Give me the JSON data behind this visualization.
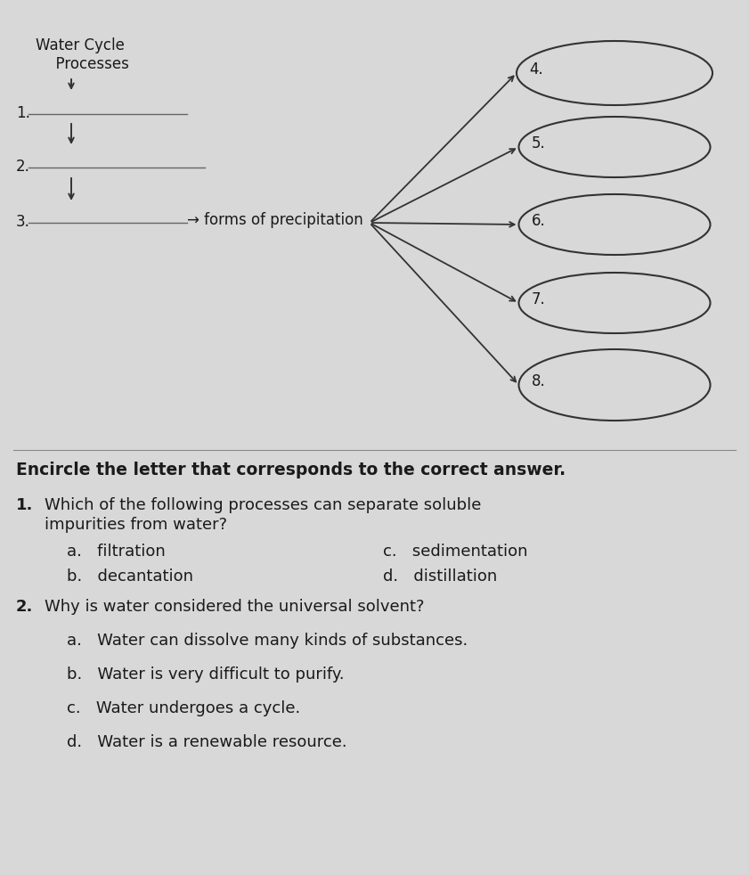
{
  "background_color": "#d8d8d8",
  "title_water_cycle": "Water Cycle",
  "title_processes": "  Processes",
  "label_1": "1.",
  "label_2": "2.",
  "label_3": "3.",
  "arrow_text": "→ forms of precipitation",
  "ellipse_labels": [
    "4.",
    "5.",
    "6.",
    "7.",
    "8."
  ],
  "section_header": "Encircle the letter that corresponds to the correct answer.",
  "q1_number": "1.",
  "q1_text": "Which of the following processes can separate soluble",
  "q1_text2": "impurities from water?",
  "q1_a": "a.   filtration",
  "q1_b": "b.   decantation",
  "q1_c": "c.   sedimentation",
  "q1_d": "d.   distillation",
  "q2_number": "2.",
  "q2_text": "Why is water considered the universal solvent?",
  "q2_a": "a.   Water can dissolve many kinds of substances.",
  "q2_b": "b.   Water is very difficult to purify.",
  "q2_c": "c.   Water undergoes a cycle.",
  "q2_d": "d.   Water is a renewable resource.",
  "text_color": "#1a1a1a",
  "line_color": "#666666",
  "ellipse_color": "#333333",
  "arrow_color": "#333333"
}
